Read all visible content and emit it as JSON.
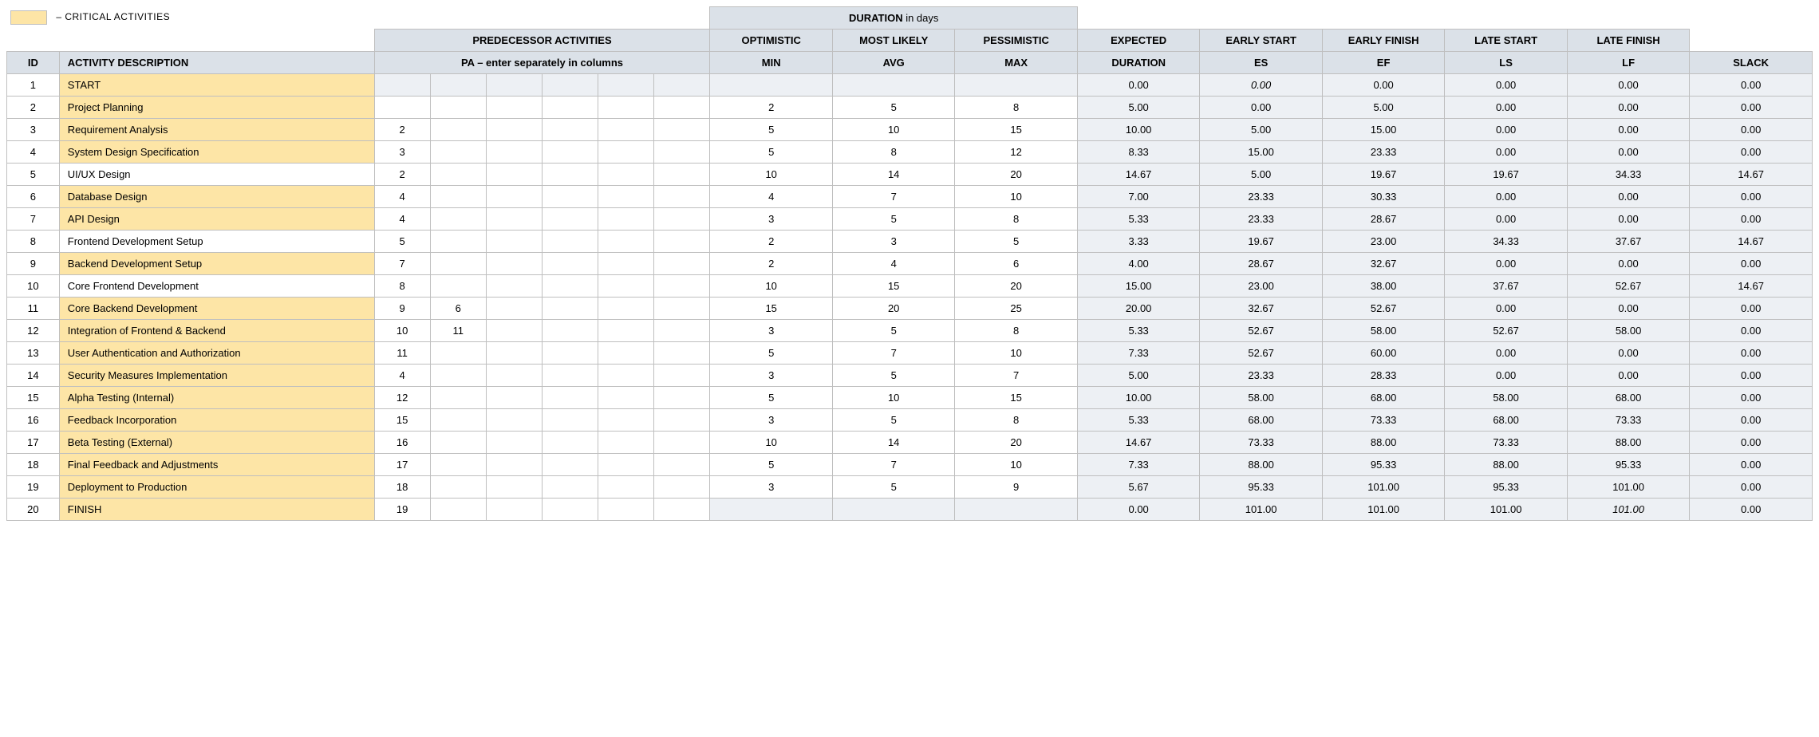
{
  "legend": {
    "swatch_color": "#fde5a6",
    "label": "– CRITICAL ACTIVITIES"
  },
  "headers": {
    "duration_group": "DURATION",
    "duration_group_suffix": " in days",
    "predecessor_group": "PREDECESSOR ACTIVITIES",
    "optimistic": "OPTIMISTIC",
    "most_likely": "MOST LIKELY",
    "pessimistic": "PESSIMISTIC",
    "expected": "EXPECTED",
    "early_start": "EARLY START",
    "early_finish": "EARLY FINISH",
    "late_start": "LATE START",
    "late_finish": "LATE FINISH",
    "id": "ID",
    "activity_desc": "ACTIVITY DESCRIPTION",
    "pa_note": "PA  –  enter separately in columns",
    "min": "MIN",
    "avg": "AVG",
    "max": "MAX",
    "duration": "DURATION",
    "es": "ES",
    "ef": "EF",
    "ls": "LS",
    "lf": "LF",
    "slack": "SLACK"
  },
  "colors": {
    "header_bg": "#dbe1e8",
    "critical_bg": "#fde5a6",
    "calc_bg": "#edf0f4",
    "border": "#bfbfbf"
  },
  "rows": [
    {
      "id": "1",
      "desc": "START",
      "critical": true,
      "pa": [
        "",
        "",
        "",
        "",
        "",
        ""
      ],
      "min": "",
      "avg": "",
      "max": "",
      "dur": "0.00",
      "es": "0.00",
      "es_italic": true,
      "ef": "0.00",
      "ls": "0.00",
      "lf": "0.00",
      "slack": "0.00",
      "blank_dur": true
    },
    {
      "id": "2",
      "desc": "Project Planning",
      "critical": true,
      "pa": [
        "",
        "",
        "",
        "",
        "",
        ""
      ],
      "min": "2",
      "avg": "5",
      "max": "8",
      "dur": "5.00",
      "es": "0.00",
      "ef": "5.00",
      "ls": "0.00",
      "lf": "0.00",
      "slack": "0.00"
    },
    {
      "id": "3",
      "desc": "Requirement Analysis",
      "critical": true,
      "pa": [
        "2",
        "",
        "",
        "",
        "",
        ""
      ],
      "min": "5",
      "avg": "10",
      "max": "15",
      "dur": "10.00",
      "es": "5.00",
      "ef": "15.00",
      "ls": "0.00",
      "lf": "0.00",
      "slack": "0.00"
    },
    {
      "id": "4",
      "desc": "System Design Specification",
      "critical": true,
      "pa": [
        "3",
        "",
        "",
        "",
        "",
        ""
      ],
      "min": "5",
      "avg": "8",
      "max": "12",
      "dur": "8.33",
      "es": "15.00",
      "ef": "23.33",
      "ls": "0.00",
      "lf": "0.00",
      "slack": "0.00"
    },
    {
      "id": "5",
      "desc": "UI/UX Design",
      "critical": false,
      "pa": [
        "2",
        "",
        "",
        "",
        "",
        ""
      ],
      "min": "10",
      "avg": "14",
      "max": "20",
      "dur": "14.67",
      "es": "5.00",
      "ef": "19.67",
      "ls": "19.67",
      "lf": "34.33",
      "slack": "14.67"
    },
    {
      "id": "6",
      "desc": "Database Design",
      "critical": true,
      "pa": [
        "4",
        "",
        "",
        "",
        "",
        ""
      ],
      "min": "4",
      "avg": "7",
      "max": "10",
      "dur": "7.00",
      "es": "23.33",
      "ef": "30.33",
      "ls": "0.00",
      "lf": "0.00",
      "slack": "0.00"
    },
    {
      "id": "7",
      "desc": "API Design",
      "critical": true,
      "pa": [
        "4",
        "",
        "",
        "",
        "",
        ""
      ],
      "min": "3",
      "avg": "5",
      "max": "8",
      "dur": "5.33",
      "es": "23.33",
      "ef": "28.67",
      "ls": "0.00",
      "lf": "0.00",
      "slack": "0.00"
    },
    {
      "id": "8",
      "desc": "Frontend Development Setup",
      "critical": false,
      "pa": [
        "5",
        "",
        "",
        "",
        "",
        ""
      ],
      "min": "2",
      "avg": "3",
      "max": "5",
      "dur": "3.33",
      "es": "19.67",
      "ef": "23.00",
      "ls": "34.33",
      "lf": "37.67",
      "slack": "14.67"
    },
    {
      "id": "9",
      "desc": "Backend Development Setup",
      "critical": true,
      "pa": [
        "7",
        "",
        "",
        "",
        "",
        ""
      ],
      "min": "2",
      "avg": "4",
      "max": "6",
      "dur": "4.00",
      "es": "28.67",
      "ef": "32.67",
      "ls": "0.00",
      "lf": "0.00",
      "slack": "0.00"
    },
    {
      "id": "10",
      "desc": "Core Frontend Development",
      "critical": false,
      "pa": [
        "8",
        "",
        "",
        "",
        "",
        ""
      ],
      "min": "10",
      "avg": "15",
      "max": "20",
      "dur": "15.00",
      "es": "23.00",
      "ef": "38.00",
      "ls": "37.67",
      "lf": "52.67",
      "slack": "14.67"
    },
    {
      "id": "11",
      "desc": "Core Backend Development",
      "critical": true,
      "pa": [
        "9",
        "6",
        "",
        "",
        "",
        ""
      ],
      "min": "15",
      "avg": "20",
      "max": "25",
      "dur": "20.00",
      "es": "32.67",
      "ef": "52.67",
      "ls": "0.00",
      "lf": "0.00",
      "slack": "0.00"
    },
    {
      "id": "12",
      "desc": "Integration of Frontend & Backend",
      "critical": true,
      "pa": [
        "10",
        "11",
        "",
        "",
        "",
        ""
      ],
      "min": "3",
      "avg": "5",
      "max": "8",
      "dur": "5.33",
      "es": "52.67",
      "ef": "58.00",
      "ls": "52.67",
      "lf": "58.00",
      "slack": "0.00"
    },
    {
      "id": "13",
      "desc": "User Authentication and Authorization",
      "critical": true,
      "pa": [
        "11",
        "",
        "",
        "",
        "",
        ""
      ],
      "min": "5",
      "avg": "7",
      "max": "10",
      "dur": "7.33",
      "es": "52.67",
      "ef": "60.00",
      "ls": "0.00",
      "lf": "0.00",
      "slack": "0.00"
    },
    {
      "id": "14",
      "desc": "Security Measures Implementation",
      "critical": true,
      "pa": [
        "4",
        "",
        "",
        "",
        "",
        ""
      ],
      "min": "3",
      "avg": "5",
      "max": "7",
      "dur": "5.00",
      "es": "23.33",
      "ef": "28.33",
      "ls": "0.00",
      "lf": "0.00",
      "slack": "0.00"
    },
    {
      "id": "15",
      "desc": "Alpha Testing (Internal)",
      "critical": true,
      "pa": [
        "12",
        "",
        "",
        "",
        "",
        ""
      ],
      "min": "5",
      "avg": "10",
      "max": "15",
      "dur": "10.00",
      "es": "58.00",
      "ef": "68.00",
      "ls": "58.00",
      "lf": "68.00",
      "slack": "0.00"
    },
    {
      "id": "16",
      "desc": "Feedback Incorporation",
      "critical": true,
      "pa": [
        "15",
        "",
        "",
        "",
        "",
        ""
      ],
      "min": "3",
      "avg": "5",
      "max": "8",
      "dur": "5.33",
      "es": "68.00",
      "ef": "73.33",
      "ls": "68.00",
      "lf": "73.33",
      "slack": "0.00"
    },
    {
      "id": "17",
      "desc": "Beta Testing (External)",
      "critical": true,
      "pa": [
        "16",
        "",
        "",
        "",
        "",
        ""
      ],
      "min": "10",
      "avg": "14",
      "max": "20",
      "dur": "14.67",
      "es": "73.33",
      "ef": "88.00",
      "ls": "73.33",
      "lf": "88.00",
      "slack": "0.00"
    },
    {
      "id": "18",
      "desc": "Final Feedback and Adjustments",
      "critical": true,
      "pa": [
        "17",
        "",
        "",
        "",
        "",
        ""
      ],
      "min": "5",
      "avg": "7",
      "max": "10",
      "dur": "7.33",
      "es": "88.00",
      "ef": "95.33",
      "ls": "88.00",
      "lf": "95.33",
      "slack": "0.00"
    },
    {
      "id": "19",
      "desc": "Deployment to Production",
      "critical": true,
      "pa": [
        "18",
        "",
        "",
        "",
        "",
        ""
      ],
      "min": "3",
      "avg": "5",
      "max": "9",
      "dur": "5.67",
      "es": "95.33",
      "ef": "101.00",
      "ls": "95.33",
      "lf": "101.00",
      "slack": "0.00"
    },
    {
      "id": "20",
      "desc": "FINISH",
      "critical": true,
      "pa": [
        "19",
        "",
        "",
        "",
        "",
        ""
      ],
      "min": "",
      "avg": "",
      "max": "",
      "dur": "0.00",
      "es": "101.00",
      "ef": "101.00",
      "ls": "101.00",
      "lf": "101.00",
      "lf_italic": true,
      "slack": "0.00",
      "blank_dur": true
    }
  ]
}
